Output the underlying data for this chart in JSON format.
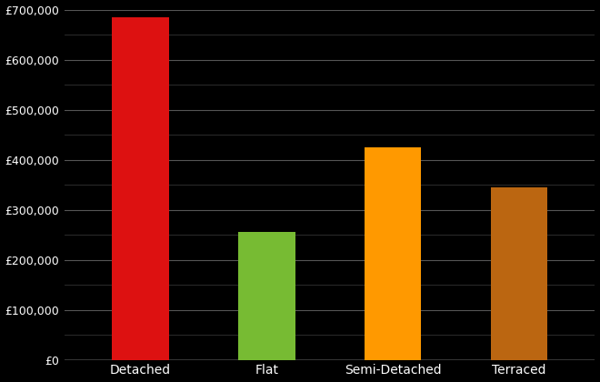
{
  "categories": [
    "Detached",
    "Flat",
    "Semi-Detached",
    "Terraced"
  ],
  "values": [
    685000,
    255000,
    425000,
    345000
  ],
  "bar_colors": [
    "#dd1111",
    "#77bb33",
    "#ff9900",
    "#bb6611"
  ],
  "background_color": "#000000",
  "text_color": "#ffffff",
  "grid_color": "#555555",
  "minor_grid_color": "#333333",
  "ylim": [
    0,
    700000
  ],
  "ytick_step": 100000,
  "figsize": [
    6.6,
    4.2
  ],
  "dpi": 100
}
